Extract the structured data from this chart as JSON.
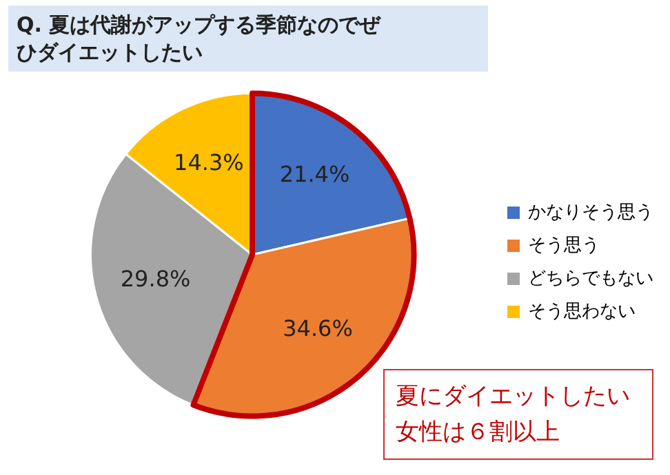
{
  "chart_data": {
    "type": "pie",
    "title": "Q.  夏は代謝がアップする季節なのでぜひダイエットしたい",
    "categories": [
      "かなりそう思う",
      "そう思う",
      "どちらでもない",
      "そう思わない"
    ],
    "values": [
      21.4,
      34.6,
      29.8,
      14.3
    ],
    "colors": [
      "#4472c4",
      "#ed7d31",
      "#a5a5a5",
      "#ffc000"
    ],
    "value_labels": [
      "21.4%",
      "34.6%",
      "29.8%",
      "14.3%"
    ],
    "legend": "right",
    "annotations": [
      "夏にダイエットしたい女性は６割以上"
    ]
  }
}
